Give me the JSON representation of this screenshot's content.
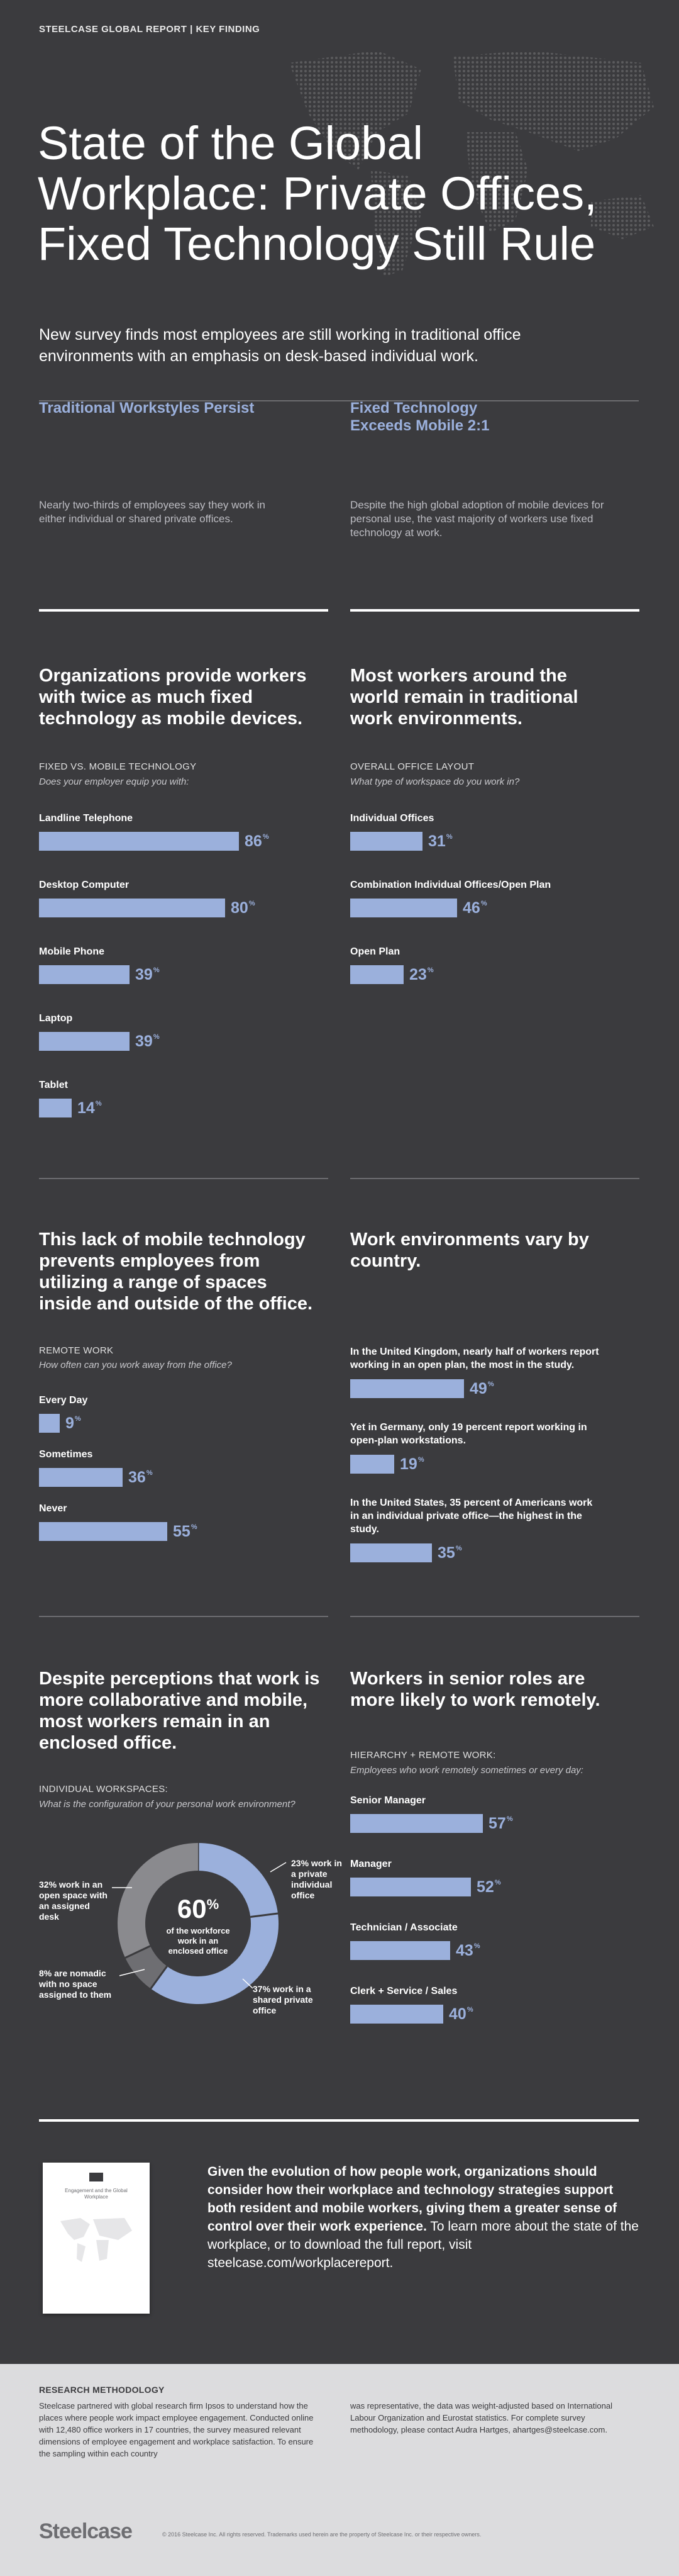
{
  "header": {
    "eyebrow": "STEELCASE GLOBAL REPORT  |  KEY FINDING"
  },
  "hero": {
    "title": "State of the Global Workplace: Private Offices, Fixed Technology Still Rule",
    "subtitle": "New survey finds most employees are still working in traditional office environments with an emphasis on desk-based individual work."
  },
  "intro": [
    {
      "title": "Traditional Workstyles Persist",
      "body": "Nearly two-thirds of employees say they work in either individual or shared private offices."
    },
    {
      "title": "Fixed Technology Exceeds Mobile 2:1",
      "body": "Despite the high global adoption of mobile devices for personal use, the vast majority of workers use fixed technology at work."
    }
  ],
  "tech": {
    "title": "Organizations provide workers with twice as much fixed technology as mobile devices.",
    "label": "FIXED VS. MOBILE TECHNOLOGY",
    "question": "Does your employer equip you with:",
    "items": [
      {
        "label": "Landline Telephone",
        "value": 86
      },
      {
        "label": "Desktop Computer",
        "value": 80
      },
      {
        "label": "Mobile Phone",
        "value": 39
      },
      {
        "label": "Laptop",
        "value": 39
      },
      {
        "label": "Tablet",
        "value": 14
      }
    ]
  },
  "layout": {
    "title": "Most workers around the world remain in traditional work environments.",
    "label": "OVERALL OFFICE LAYOUT",
    "question": "What type of workspace do you work in?",
    "items": [
      {
        "label": "Individual Offices",
        "value": 31
      },
      {
        "label": "Combination Individual Offices/Open Plan",
        "value": 46
      },
      {
        "label": "Open Plan",
        "value": 23
      }
    ]
  },
  "remote": {
    "title": "This lack of mobile technology prevents employees from utilizing a range of spaces inside and outside of the office.",
    "label": "REMOTE WORK",
    "question": "How often can you work away from the office?",
    "items": [
      {
        "label": "Every Day",
        "value": 9
      },
      {
        "label": "Sometimes",
        "value": 36
      },
      {
        "label": "Never",
        "value": 55
      }
    ]
  },
  "country": {
    "title": "Work environments vary by country.",
    "items": [
      {
        "label": "In the United Kingdom, nearly half of workers report working in an open plan, the most in the study.",
        "value": 49
      },
      {
        "label": "Yet in Germany, only 19 percent report working in open-plan workstations.",
        "value": 19
      },
      {
        "label": "In the United States, 35 percent of Americans work in an individual private office—the highest in the study.",
        "value": 35
      }
    ]
  },
  "enclosed": {
    "title": "Despite perceptions that work is more collaborative and mobile, most workers remain in an enclosed office.",
    "label": "INDIVIDUAL WORKSPACES:",
    "question": "What is the configuration of your personal work environment?",
    "center_value": "60",
    "center_unit": "%",
    "center_text": "of the workforce work in an enclosed office",
    "label_open": "32% work in an open space with an assigned desk",
    "label_nomadic": "8% are nomadic with no space assigned to them",
    "label_private": "23% work in a private individual office",
    "label_shared": "37% work in a shared private office"
  },
  "chart_data": [
    {
      "type": "bar",
      "categories": [
        "Landline Telephone",
        "Desktop Computer",
        "Mobile Phone",
        "Laptop",
        "Tablet"
      ],
      "values": [
        86,
        80,
        39,
        39,
        14
      ],
      "title": "FIXED VS. MOBILE TECHNOLOGY"
    },
    {
      "type": "bar",
      "categories": [
        "Individual Offices",
        "Combination Individual Offices/Open Plan",
        "Open Plan"
      ],
      "values": [
        31,
        46,
        23
      ],
      "title": "OVERALL OFFICE LAYOUT"
    },
    {
      "type": "bar",
      "categories": [
        "Every Day",
        "Sometimes",
        "Never"
      ],
      "values": [
        9,
        36,
        55
      ],
      "title": "REMOTE WORK"
    },
    {
      "type": "bar",
      "categories": [
        "United Kingdom",
        "Germany",
        "United States"
      ],
      "values": [
        49,
        19,
        35
      ]
    },
    {
      "type": "pie",
      "categories": [
        "Private individual office",
        "Shared private office",
        "Nomadic",
        "Open space with assigned desk"
      ],
      "values": [
        23,
        37,
        8,
        32
      ],
      "title": "INDIVIDUAL WORKSPACES:"
    },
    {
      "type": "bar",
      "categories": [
        "Senior Manager",
        "Manager",
        "Technician / Associate",
        "Clerk + Service / Sales"
      ],
      "values": [
        57,
        52,
        43,
        40
      ],
      "title": "HIERARCHY + REMOTE WORK:"
    }
  ],
  "colors": {
    "background": "#3b3b3e",
    "accent": "#9bb0dc",
    "donut_dark": "#6e6e72",
    "donut_mid": "#8a8a8e",
    "footer": "#dcdcde"
  },
  "senior": {
    "title": "Workers in senior roles are more likely to work remotely.",
    "label": "HIERARCHY + REMOTE WORK:",
    "question": "Employees who work remotely sometimes or every day:",
    "items": [
      {
        "label": "Senior Manager",
        "value": 57
      },
      {
        "label": "Manager",
        "value": 52
      },
      {
        "label": "Technician / Associate",
        "value": 43
      },
      {
        "label": "Clerk + Service / Sales",
        "value": 40
      }
    ]
  },
  "cta": {
    "bold": "Given the evolution of how people work, organizations should consider how their workplace and technology strategies support both resident and mobile workers, giving them a greater sense of control over their work experience.",
    "normal": " To learn more about the state of the workplace, or to download the full report, visit steelcase.com/workplacereport."
  },
  "methodology": {
    "heading": "RESEARCH METHODOLOGY",
    "col1": "Steelcase partnered with global research firm Ipsos to understand how the places where people work impact employee engagement. Conducted online with 12,480 office workers in 17 countries, the survey measured relevant dimensions of employee engagement and workplace satisfaction. To ensure the sampling within each country",
    "col2": "was representative, the data was weight-adjusted based on International Labour Organization and Eurostat statistics. For complete survey methodology, please contact Audra Hartges, ahartges@steelcase.com."
  },
  "footer": {
    "logo": "Steelcase",
    "copyright": "© 2016 Steelcase Inc. All rights reserved. Trademarks used herein are the property of Steelcase Inc. or their respective owners."
  },
  "report_cover": {
    "title": "Engagement and the Global Workplace"
  }
}
